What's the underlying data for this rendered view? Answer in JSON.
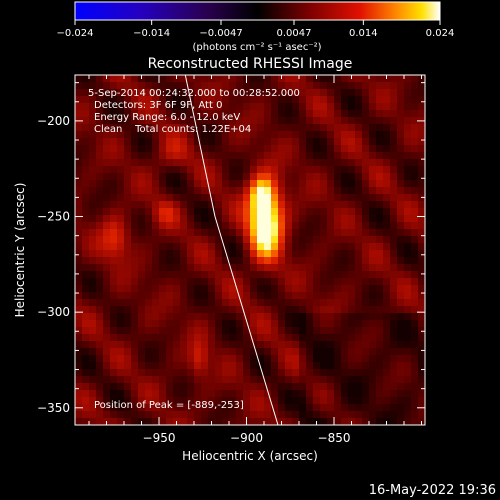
{
  "window": {
    "footer_timestamp": "16-May-2022 19:36"
  },
  "colorbar": {
    "ticks": [
      "-0.024",
      "-0.014",
      "-0.0047",
      "0.0047",
      "0.014",
      "0.024"
    ],
    "units": "(photons cm⁻² s⁻¹ asec⁻²)",
    "range": [
      -0.024,
      0.024
    ]
  },
  "annotations": {
    "line1": "5-Sep-2014 00:24:32.000 to 00:28:52.000",
    "line2": "Detectors: 3F 6F 9F, Att 0",
    "line3": "Energy Range: 6.0 - 12.0 keV",
    "line4": "Clean    Total counts: 1.22E+04",
    "peak": "Position of Peak = [-889,-253]"
  },
  "chart_data": {
    "type": "heatmap",
    "title": "Reconstructed RHESSI Image",
    "xlabel": "Heliocentric X (arcsec)",
    "ylabel": "Heliocentric Y (arcsec)",
    "xlim": [
      -998,
      -798
    ],
    "ylim": [
      -359,
      -176
    ],
    "xticks": [
      -950,
      -900,
      -850
    ],
    "yticks": [
      -200,
      -250,
      -300,
      -350
    ],
    "xtick_labels": [
      "−950",
      "−900",
      "−850"
    ],
    "ytick_labels": [
      "−200",
      "−250",
      "−300",
      "−350"
    ],
    "peak_position": [
      -889,
      -253
    ],
    "sources": [
      {
        "x": -889,
        "y": -252,
        "sx": 7,
        "sy": 14,
        "amp": 1.0
      },
      {
        "x": -892,
        "y": -238,
        "sx": 5,
        "sy": 6,
        "amp": 0.4
      },
      {
        "x": -975,
        "y": -262,
        "sx": 6,
        "sy": 8,
        "amp": 0.35
      },
      {
        "x": -947,
        "y": -248,
        "sx": 5,
        "sy": 5,
        "amp": 0.22
      },
      {
        "x": -927,
        "y": -325,
        "sx": 4,
        "sy": 7,
        "amp": 0.3
      },
      {
        "x": -944,
        "y": -218,
        "sx": 8,
        "sy": 6,
        "amp": 0.18
      }
    ],
    "background_level": 0.2,
    "ripple_amplitude": 0.12,
    "limb_line": {
      "points": [
        [
          -935,
          -176
        ],
        [
          -918,
          -250
        ],
        [
          -882,
          -359
        ]
      ],
      "color": "#ffffff"
    }
  }
}
